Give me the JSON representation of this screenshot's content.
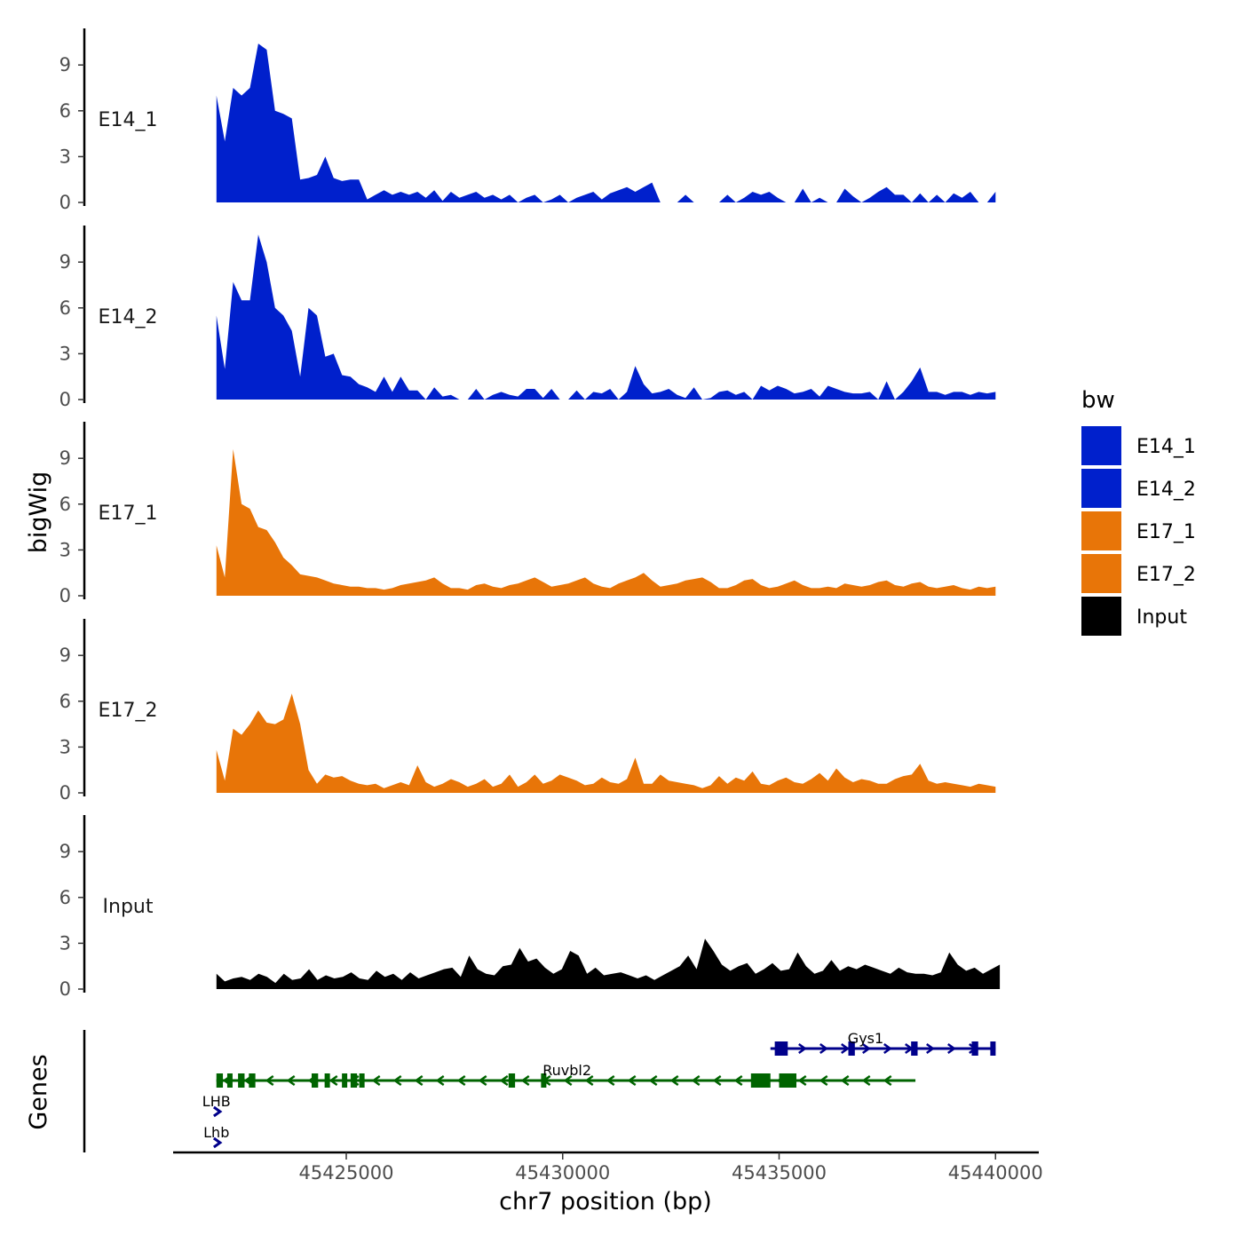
{
  "chart_data": {
    "type": "area",
    "chromosome": "chr7",
    "xlabel": "chr7 position (bp)",
    "ylabel": "bigWig",
    "genes_label": "Genes",
    "xlim": [
      45421000,
      45441000
    ],
    "ylim": [
      0,
      11
    ],
    "x_ticks": [
      45425000,
      45430000,
      45435000,
      45440000
    ],
    "x_tick_labels": [
      "45425000",
      "45430000",
      "45435000",
      "45440000"
    ],
    "y_ticks": [
      0,
      3,
      6,
      9
    ],
    "y_tick_labels": [
      "0",
      "3",
      "6",
      "9"
    ],
    "legend": {
      "title": "bw",
      "entries": [
        {
          "label": "E14_1",
          "color": "#0020CC"
        },
        {
          "label": "E14_2",
          "color": "#0020CC"
        },
        {
          "label": "E17_1",
          "color": "#E87508"
        },
        {
          "label": "E17_2",
          "color": "#E87508"
        },
        {
          "label": "Input",
          "color": "#000000"
        }
      ]
    },
    "series": [
      {
        "name": "E14_1",
        "color": "#0020CC",
        "x_start": 45422000,
        "x_end": 45440000,
        "values": [
          7,
          4,
          7.5,
          7,
          7.5,
          10.4,
          10,
          6,
          5.8,
          5.5,
          1.5,
          1.6,
          1.8,
          3,
          1.6,
          1.4,
          1.5,
          1.5,
          0.2,
          0.5,
          0.8,
          0.5,
          0.7,
          0.5,
          0.7,
          0.3,
          0.8,
          0.1,
          0.7,
          0.3,
          0.5,
          0.7,
          0.3,
          0.5,
          0.2,
          0.5,
          0,
          0.3,
          0.5,
          0,
          0.2,
          0.5,
          0,
          0.3,
          0.5,
          0.7,
          0.2,
          0.6,
          0.8,
          1.0,
          0.7,
          1.0,
          1.3,
          0,
          0,
          0,
          0.5,
          0,
          0,
          0,
          0,
          0.5,
          0,
          0.3,
          0.7,
          0.5,
          0.7,
          0.3,
          0,
          0,
          0.9,
          0,
          0.3,
          0,
          0,
          0.9,
          0.4,
          0,
          0.3,
          0.7,
          1,
          0.5,
          0.5,
          0,
          0.6,
          0,
          0.5,
          0,
          0.6,
          0.3,
          0.7,
          0,
          0,
          0.7
        ]
      },
      {
        "name": "E14_2",
        "color": "#0020CC",
        "x_start": 45422000,
        "x_end": 45440000,
        "values": [
          5.5,
          2,
          7.7,
          6.5,
          6.5,
          10.8,
          9,
          6,
          5.5,
          4.5,
          1.5,
          6,
          5.5,
          2.8,
          3,
          1.6,
          1.5,
          1.0,
          0.8,
          0.5,
          1.5,
          0.5,
          1.5,
          0.6,
          0.6,
          0,
          0.8,
          0.2,
          0.3,
          0,
          0,
          0.7,
          0,
          0.3,
          0.5,
          0.3,
          0.2,
          0.7,
          0.7,
          0.1,
          0.7,
          0,
          0,
          0.6,
          0,
          0.5,
          0.4,
          0.7,
          0,
          0.5,
          2.2,
          1.0,
          0.4,
          0.5,
          0.7,
          0.3,
          0.1,
          0.8,
          0,
          0.1,
          0.5,
          0.6,
          0.3,
          0.5,
          0,
          0.9,
          0.6,
          0.9,
          0.7,
          0.4,
          0.5,
          0.7,
          0.2,
          0.9,
          0.7,
          0.5,
          0.4,
          0.4,
          0.5,
          0,
          1.2,
          0,
          0.5,
          1.2,
          2.1,
          0.5,
          0.5,
          0.3,
          0.5,
          0.5,
          0.3,
          0.5,
          0.4,
          0.5
        ]
      },
      {
        "name": "E17_1",
        "color": "#E87508",
        "x_start": 45422000,
        "x_end": 45440000,
        "values": [
          3.3,
          1.2,
          9.6,
          6,
          5.7,
          4.5,
          4.3,
          3.5,
          2.5,
          2.0,
          1.4,
          1.3,
          1.2,
          1.0,
          0.8,
          0.7,
          0.6,
          0.6,
          0.5,
          0.5,
          0.4,
          0.5,
          0.7,
          0.8,
          0.9,
          1.0,
          1.2,
          0.8,
          0.5,
          0.5,
          0.4,
          0.7,
          0.8,
          0.6,
          0.5,
          0.7,
          0.8,
          1.0,
          1.2,
          0.9,
          0.6,
          0.7,
          0.8,
          1.0,
          1.2,
          0.8,
          0.6,
          0.5,
          0.8,
          1.0,
          1.2,
          1.5,
          1.0,
          0.6,
          0.7,
          0.8,
          1.0,
          1.1,
          1.2,
          0.9,
          0.5,
          0.5,
          0.7,
          1.0,
          1.1,
          0.7,
          0.5,
          0.6,
          0.8,
          1.0,
          0.7,
          0.5,
          0.5,
          0.6,
          0.5,
          0.8,
          0.7,
          0.6,
          0.7,
          0.9,
          1.0,
          0.7,
          0.6,
          0.8,
          0.9,
          0.6,
          0.5,
          0.6,
          0.7,
          0.5,
          0.4,
          0.6,
          0.5,
          0.6
        ]
      },
      {
        "name": "E17_2",
        "color": "#E87508",
        "x_start": 45422000,
        "x_end": 45440000,
        "values": [
          2.8,
          0.8,
          4.2,
          3.8,
          4.5,
          5.4,
          4.6,
          4.5,
          4.8,
          6.5,
          4.5,
          1.5,
          0.6,
          1.2,
          1.0,
          1.1,
          0.8,
          0.6,
          0.5,
          0.6,
          0.3,
          0.5,
          0.7,
          0.5,
          1.8,
          0.7,
          0.4,
          0.6,
          0.9,
          0.7,
          0.4,
          0.6,
          0.9,
          0.4,
          0.6,
          1.2,
          0.4,
          0.7,
          1.2,
          0.6,
          0.8,
          1.2,
          1.0,
          0.8,
          0.5,
          0.6,
          1.0,
          0.7,
          0.6,
          0.9,
          2.3,
          0.6,
          0.6,
          1.2,
          0.8,
          0.7,
          0.6,
          0.5,
          0.3,
          0.5,
          1.1,
          0.6,
          1.0,
          0.8,
          1.4,
          0.6,
          0.5,
          0.8,
          1.0,
          0.7,
          0.6,
          0.9,
          1.3,
          0.8,
          1.6,
          1.0,
          0.7,
          0.9,
          0.8,
          0.6,
          0.6,
          0.9,
          1.1,
          1.2,
          1.9,
          0.8,
          0.6,
          0.7,
          0.6,
          0.5,
          0.4,
          0.6,
          0.5,
          0.4
        ]
      },
      {
        "name": "Input",
        "color": "#000000",
        "x_start": 45422000,
        "x_end": 45440100,
        "values": [
          1.0,
          0.5,
          0.7,
          0.8,
          0.6,
          1.0,
          0.8,
          0.4,
          1.0,
          0.6,
          0.7,
          1.3,
          0.6,
          0.9,
          0.7,
          0.8,
          1.1,
          0.7,
          0.6,
          1.2,
          0.8,
          1.0,
          0.6,
          1.1,
          0.7,
          0.9,
          1.1,
          1.3,
          1.4,
          0.8,
          2.2,
          1.3,
          1.0,
          0.9,
          1.5,
          1.6,
          2.7,
          1.8,
          2.0,
          1.4,
          1.0,
          1.3,
          2.5,
          2.2,
          1.0,
          1.4,
          0.9,
          1.0,
          1.1,
          0.9,
          0.7,
          0.9,
          0.6,
          0.9,
          1.2,
          1.5,
          2.2,
          1.3,
          3.3,
          2.5,
          1.6,
          1.2,
          1.5,
          1.7,
          1.0,
          1.3,
          1.7,
          1.2,
          1.3,
          2.4,
          1.5,
          1.0,
          1.2,
          1.9,
          1.2,
          1.5,
          1.3,
          1.6,
          1.4,
          1.2,
          1.0,
          1.4,
          1.1,
          1.0,
          1.0,
          0.9,
          1.1,
          2.4,
          1.6,
          1.2,
          1.4,
          1.0,
          1.3,
          1.6
        ]
      }
    ],
    "genes": [
      {
        "name": "Gys1",
        "strand": "+",
        "color": "#00008B",
        "start": 45434800,
        "end": 45440000,
        "exons": [
          [
            45434900,
            45435200
          ],
          [
            45436600,
            45436750
          ],
          [
            45438050,
            45438200
          ],
          [
            45439450,
            45439600
          ],
          [
            45439880,
            45440000
          ]
        ]
      },
      {
        "name": "Ruvbl2",
        "strand": "-",
        "color": "#006400",
        "start": 45422000,
        "end": 45438150,
        "exons": [
          [
            45422000,
            45422150
          ],
          [
            45422250,
            45422350
          ],
          [
            45422500,
            45422650
          ],
          [
            45422750,
            45422900
          ],
          [
            45424200,
            45424350
          ],
          [
            45424500,
            45424600
          ],
          [
            45424900,
            45425000
          ],
          [
            45425100,
            45425250
          ],
          [
            45425300,
            45425400
          ],
          [
            45428750,
            45428900
          ],
          [
            45429500,
            45429600
          ],
          [
            45434350,
            45434800
          ],
          [
            45435000,
            45435400
          ]
        ]
      },
      {
        "name": "LHB",
        "strand": "+",
        "color": "#00008B",
        "start": 45421900,
        "end": 45422000,
        "exons": []
      },
      {
        "name": "Lhb",
        "strand": "+",
        "color": "#00008B",
        "start": 45421900,
        "end": 45422000,
        "exons": []
      }
    ]
  }
}
